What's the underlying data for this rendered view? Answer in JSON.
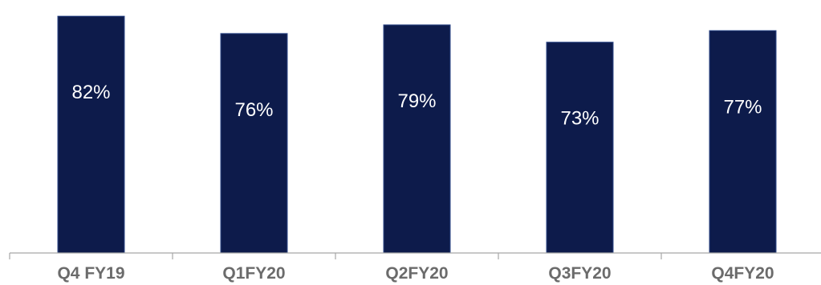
{
  "chart_data": {
    "type": "bar",
    "categories": [
      "Q4 FY19",
      "Q1FY20",
      "Q2FY20",
      "Q3FY20",
      "Q4FY20"
    ],
    "values": [
      82,
      76,
      79,
      73,
      77
    ],
    "value_labels": [
      "82%",
      "76%",
      "79%",
      "73%",
      "77%"
    ],
    "title": "",
    "xlabel": "",
    "ylabel": "",
    "ylim": [
      0,
      84
    ],
    "grid": false,
    "legend": "none",
    "colors": {
      "bar": "#0d1b4b",
      "bar_edge": "#2f4a8a",
      "value_label": "#ffffff",
      "category_label": "#6b6b6b",
      "axis": "#a6a6a6"
    }
  }
}
